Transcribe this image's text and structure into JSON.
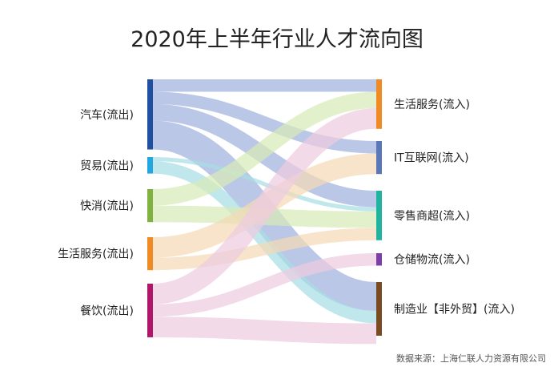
{
  "chart_data": {
    "type": "sankey",
    "title": "2020年上半年行业人才流向图",
    "source": "数据来源：上海仁联人力资源有限公司",
    "sources": [
      {
        "id": "s_auto",
        "label": "汽车(流出)",
        "color": "#1F4FA0",
        "value": 17
      },
      {
        "id": "s_trade",
        "label": "贸易(流出)",
        "color": "#22A7E0",
        "value": 4
      },
      {
        "id": "s_fmcg",
        "label": "快消(流出)",
        "color": "#7FB23E",
        "value": 8
      },
      {
        "id": "s_life",
        "label": "生活服务(流出)",
        "color": "#F08A24",
        "value": 8
      },
      {
        "id": "s_food",
        "label": "餐饮(流出)",
        "color": "#B0176A",
        "value": 13
      }
    ],
    "targets": [
      {
        "id": "t_life",
        "label": "生活服务(流入)",
        "color": "#F08A24",
        "value": 12
      },
      {
        "id": "t_it",
        "label": "IT互联网(流入)",
        "color": "#5A78B8",
        "value": 8
      },
      {
        "id": "t_retail",
        "label": "零售商超(流入)",
        "color": "#1FB3A0",
        "value": 12
      },
      {
        "id": "t_logistics",
        "label": "仓储物流(流入)",
        "color": "#7B3FA8",
        "value": 3
      },
      {
        "id": "t_mfg",
        "label": "制造业【非外贸】(流入)",
        "color": "#7A4A22",
        "value": 13
      }
    ],
    "links": [
      {
        "source": "s_auto",
        "target": "t_life",
        "value": 3,
        "color": "#9FB1DC"
      },
      {
        "source": "s_auto",
        "target": "t_it",
        "value": 3,
        "color": "#9FB1DC"
      },
      {
        "source": "s_auto",
        "target": "t_retail",
        "value": 4,
        "color": "#9FB1DC"
      },
      {
        "source": "s_auto",
        "target": "t_mfg",
        "value": 7,
        "color": "#9FB1DC"
      },
      {
        "source": "s_trade",
        "target": "t_retail",
        "value": 1,
        "color": "#A7DEE4"
      },
      {
        "source": "s_trade",
        "target": "t_mfg",
        "value": 3,
        "color": "#A7DEE4"
      },
      {
        "source": "s_fmcg",
        "target": "t_life",
        "value": 4,
        "color": "#D8EAB9"
      },
      {
        "source": "s_fmcg",
        "target": "t_retail",
        "value": 4,
        "color": "#D8EAB9"
      },
      {
        "source": "s_life",
        "target": "t_it",
        "value": 5,
        "color": "#F4D9B6"
      },
      {
        "source": "s_life",
        "target": "t_retail",
        "value": 3,
        "color": "#F4D9B6"
      },
      {
        "source": "s_food",
        "target": "t_life",
        "value": 5,
        "color": "#EDCCE0"
      },
      {
        "source": "s_food",
        "target": "t_logistics",
        "value": 3,
        "color": "#EDCCE0"
      },
      {
        "source": "s_food",
        "target": "t_mfg",
        "value": 5,
        "color": "#EDCCE0"
      }
    ]
  }
}
